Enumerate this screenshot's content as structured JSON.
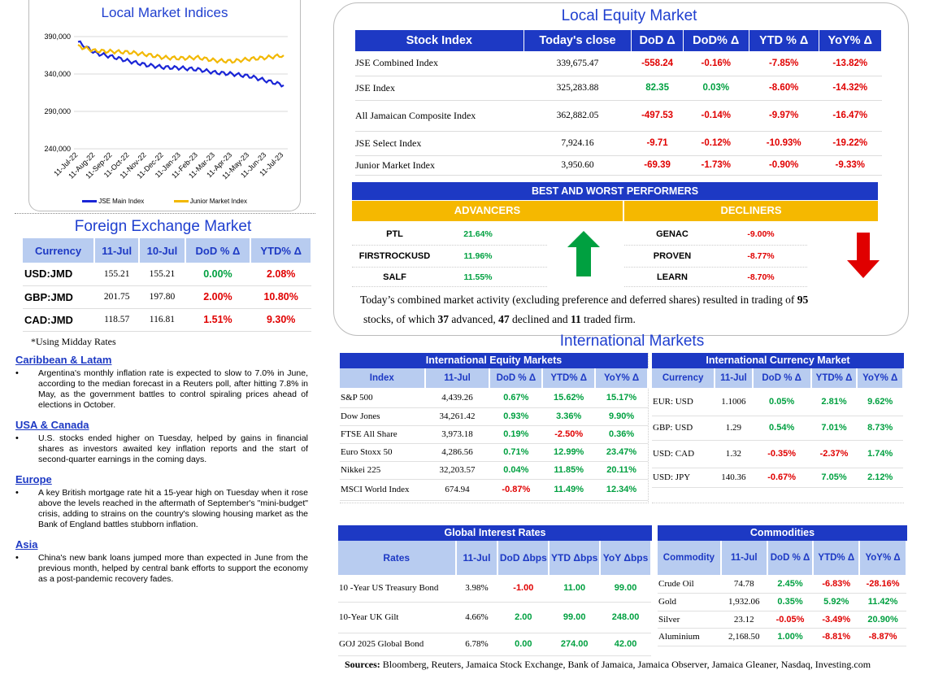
{
  "indices_chart": {
    "title": "Local Market Indices",
    "legend": [
      "JSE Main Index",
      "Junior Market Index"
    ]
  },
  "chart_data": {
    "type": "line",
    "title": "Local Market Indices",
    "x": [
      "11-Jul-22",
      "11-Aug-22",
      "11-Sep-22",
      "11-Oct-22",
      "11-Nov-22",
      "11-Dec-22",
      "11-Jan-23",
      "11-Feb-23",
      "11-Mar-23",
      "11-Apr-23",
      "11-May-23",
      "11-Jun-23",
      "11-Jul-23"
    ],
    "ylim": [
      240000,
      390000
    ],
    "yticks": [
      "240,000",
      "290,000",
      "340,000",
      "390,000"
    ],
    "series": [
      {
        "name": "JSE Main Index",
        "color": "#1a25d6",
        "values": [
          383000,
          368000,
          363000,
          357000,
          352000,
          349000,
          348000,
          346000,
          342000,
          340000,
          337000,
          331000,
          325000
        ]
      },
      {
        "name": "Junior Market Index",
        "color": "#f2b800",
        "values": [
          377000,
          371000,
          370000,
          369000,
          366000,
          362000,
          361000,
          362000,
          358000,
          357000,
          360000,
          362000,
          365000
        ]
      }
    ],
    "legend_position": "bottom",
    "grid": true
  },
  "fx": {
    "title": "Foreign Exchange Market",
    "headers": [
      "Currency",
      "11-Jul",
      "10-Jul",
      "DoD % Δ",
      "YTD% Δ"
    ],
    "rows": [
      [
        "USD:JMD",
        "155.21",
        "155.21",
        "0.00%",
        "2.08%"
      ],
      [
        "GBP:JMD",
        "201.75",
        "197.80",
        "2.00%",
        "10.80%"
      ],
      [
        "CAD:JMD",
        "118.57",
        "116.81",
        "1.51%",
        "9.30%"
      ]
    ],
    "note": "*Using Midday Rates"
  },
  "news": [
    {
      "head": "Caribbean & Latam",
      "body": "Argentina's monthly inflation rate is expected to slow to 7.0% in June, according to the median forecast in a Reuters poll, after hitting 7.8% in May, as the government battles to control spiraling prices ahead of elections in October."
    },
    {
      "head": "USA & Canada",
      "body": "U.S. stocks ended higher on Tuesday, helped by gains in financial shares as investors awaited key inflation reports and the start of second-quarter earnings in the coming days."
    },
    {
      "head": "Europe",
      "body": "A key British mortgage rate hit a 15-year high on Tuesday when it rose above the levels reached in the aftermath of September's \"mini-budget\" crisis, adding to strains on the country's slowing housing market as the Bank of England battles stubborn inflation."
    },
    {
      "head": "Asia",
      "body": "China's new bank loans jumped more than expected in June from the previous month, helped by central bank efforts to support the economy as a post-pandemic recovery fades."
    }
  ],
  "equity": {
    "title": "Local Equity Market",
    "headers": [
      "Stock Index",
      "Today's close",
      "DoD  Δ",
      "DoD% Δ",
      "YTD % Δ",
      "YoY% Δ"
    ],
    "rows": [
      [
        "JSE Combined Index",
        "339,675.47",
        "-558.24",
        "-0.16%",
        "-7.85%",
        "-13.82%"
      ],
      [
        "JSE Index",
        "325,283.88",
        "82.35",
        "0.03%",
        "-8.60%",
        "-14.32%"
      ],
      [
        "All Jamaican Composite Index",
        "362,882.05",
        "-497.53",
        "-0.14%",
        "-9.97%",
        "-16.47%"
      ],
      [
        "JSE Select Index",
        "7,924.16",
        "-9.71",
        "-0.12%",
        "-10.93%",
        "-19.22%"
      ],
      [
        "Junior Market Index",
        "3,950.60",
        "-69.39",
        "-1.73%",
        "-0.90%",
        "-9.33%"
      ]
    ]
  },
  "performers": {
    "title": "BEST AND WORST PERFORMERS",
    "advancers_label": "ADVANCERS",
    "decliners_label": "DECLINERS",
    "advancers": [
      [
        "PTL",
        "21.64%"
      ],
      [
        "FIRSTROCKUSD",
        "11.96%"
      ],
      [
        "SALF",
        "11.55%"
      ]
    ],
    "decliners": [
      [
        "GENAC",
        "-9.00%"
      ],
      [
        "PROVEN",
        "-8.77%"
      ],
      [
        "LEARN",
        "-8.70%"
      ]
    ]
  },
  "summary": {
    "p1": "Today’s combined market activity (excluding preference and deferred shares) resulted in trading of ",
    "n1": "95",
    "p2": "stocks, of which ",
    "n2": "37",
    "p3": " advanced, ",
    "n3": "47",
    "p4": " declined and ",
    "n4": "11",
    "p5": " traded firm."
  },
  "intl": {
    "title": "International Markets",
    "equity": {
      "title": "International Equity Markets",
      "headers": [
        "Index",
        "11-Jul",
        "DoD % Δ",
        "YTD% Δ",
        "YoY% Δ"
      ],
      "rows": [
        [
          "S&P 500",
          "4,439.26",
          "0.67%",
          "15.62%",
          "15.17%"
        ],
        [
          "Dow Jones",
          "34,261.42",
          "0.93%",
          "3.36%",
          "9.90%"
        ],
        [
          "FTSE All Share",
          "3,973.18",
          "0.19%",
          "-2.50%",
          "0.36%"
        ],
        [
          "Euro Stoxx 50",
          "4,286.56",
          "0.71%",
          "12.99%",
          "23.47%"
        ],
        [
          "Nikkei 225",
          "32,203.57",
          "0.04%",
          "11.85%",
          "20.11%"
        ],
        [
          "MSCI World Index",
          "674.94",
          "-0.87%",
          "11.49%",
          "12.34%"
        ]
      ]
    },
    "currency": {
      "title": "International Currency Market",
      "headers": [
        "Currency",
        "11-Jul",
        "DoD % Δ",
        "YTD% Δ",
        "YoY% Δ"
      ],
      "rows": [
        [
          "EUR: USD",
          "1.1006",
          "0.05%",
          "2.81%",
          "9.62%"
        ],
        [
          "GBP: USD",
          "1.29",
          "0.54%",
          "7.01%",
          "8.73%"
        ],
        [
          "USD: CAD",
          "1.32",
          "-0.35%",
          "-2.37%",
          "1.74%"
        ],
        [
          "USD: JPY",
          "140.36",
          "-0.67%",
          "7.05%",
          "2.12%"
        ]
      ]
    },
    "rates": {
      "title": "Global Interest Rates",
      "headers": [
        "Rates",
        "11-Jul",
        "DoD Δbps",
        "YTD Δbps",
        "YoY Δbps"
      ],
      "rows": [
        [
          "10 -Year US Treasury Bond",
          "3.98%",
          "-1.00",
          "11.00",
          "99.00"
        ],
        [
          "10-Year UK Gilt",
          "4.66%",
          "2.00",
          "99.00",
          "248.00"
        ],
        [
          "GOJ 2025 Global Bond",
          "6.78%",
          "0.00",
          "274.00",
          "42.00"
        ]
      ]
    },
    "commodities": {
      "title": "Commodities",
      "headers": [
        "Commodity",
        "11-Jul",
        "DoD % Δ",
        "YTD% Δ",
        "YoY% Δ"
      ],
      "rows": [
        [
          "Crude Oil",
          "74.78",
          "2.45%",
          "-6.83%",
          "-28.16%"
        ],
        [
          "Gold",
          "1,932.06",
          "0.35%",
          "5.92%",
          "11.42%"
        ],
        [
          "Silver",
          "23.12",
          "-0.05%",
          "-3.49%",
          "20.90%"
        ],
        [
          "Aluminium",
          "2,168.50",
          "1.00%",
          "-8.81%",
          "-8.87%"
        ]
      ]
    }
  },
  "sources": {
    "label": "Sources:",
    "text": " Bloomberg, Reuters, Jamaica Stock Exchange, Bank of Jamaica, Jamaica Observer, Jamaica Gleaner, Nasdaq, Investing.com"
  },
  "colors": {
    "header_blue": "#1d39c4",
    "light_blue": "#b8ccf0",
    "gold": "#f5b800",
    "red": "#e00000",
    "green": "#00a040"
  }
}
